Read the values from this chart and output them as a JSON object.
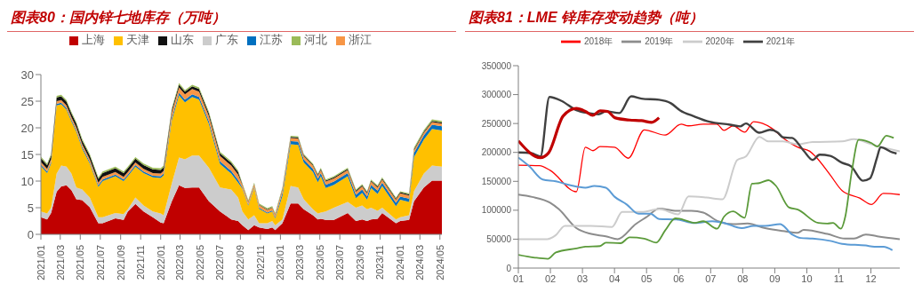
{
  "chart_data": [
    {
      "type": "area",
      "title": "图表80：国内锌七地库存（万吨）",
      "stacked": true,
      "legend": "top",
      "marker": "none",
      "x": [
        "2021-01-01",
        "2021-01-20",
        "2021-02-01",
        "2021-02-18",
        "2021-03-04",
        "2021-03-20",
        "2021-04-04",
        "2021-04-19",
        "2021-05-07",
        "2021-05-30",
        "2021-06-25",
        "2021-07-08",
        "2021-08-16",
        "2021-09-10",
        "2021-09-23",
        "2021-10-16",
        "2021-11-10",
        "2021-12-08",
        "2022-01-01",
        "2022-01-10",
        "2022-02-04",
        "2022-02-26",
        "2022-03-16",
        "2022-04-07",
        "2022-04-28",
        "2022-05-28",
        "2022-07-01",
        "2022-08-04",
        "2022-08-25",
        "2022-09-07",
        "2022-09-25",
        "2022-10-13",
        "2022-10-28",
        "2022-11-22",
        "2022-12-07",
        "2022-12-16",
        "2023-01-07",
        "2023-02-01",
        "2023-02-24",
        "2023-03-13",
        "2023-04-10",
        "2023-04-25",
        "2023-05-04",
        "2023-05-19",
        "2023-06-13",
        "2023-07-25",
        "2023-08-19",
        "2023-09-07",
        "2023-09-22",
        "2023-10-04",
        "2023-10-24",
        "2023-11-07",
        "2023-12-19",
        "2024-01-01",
        "2024-01-28",
        "2024-02-12",
        "2024-03-13",
        "2024-04-07",
        "2024-05-07"
      ],
      "xlim": [
        "2021-01-01",
        "2024-05-07"
      ],
      "xticks": [
        {
          "value": "2021-01",
          "label": "2021/01"
        },
        {
          "value": "2021-03",
          "label": "2021/03"
        },
        {
          "value": "2021-05",
          "label": "2021/05"
        },
        {
          "value": "2021-07",
          "label": "2021/07"
        },
        {
          "value": "2021-09",
          "label": "2021/09"
        },
        {
          "value": "2021-11",
          "label": "2021/11"
        },
        {
          "value": "2022-01",
          "label": "2022/01"
        },
        {
          "value": "2022-03",
          "label": "2022/03"
        },
        {
          "value": "2022-05",
          "label": "2022/05"
        },
        {
          "value": "2022-07",
          "label": "2022/07"
        },
        {
          "value": "2022-09",
          "label": "2022/09"
        },
        {
          "value": "2022-11",
          "label": "2022/11"
        },
        {
          "value": "2023-01",
          "label": "2023/01"
        },
        {
          "value": "2023-03",
          "label": "2023/03"
        },
        {
          "value": "2023-05",
          "label": "2023/05"
        },
        {
          "value": "2023-07",
          "label": "2023/07"
        },
        {
          "value": "2023-09",
          "label": "2023/09"
        },
        {
          "value": "2023-11",
          "label": "2023/11"
        },
        {
          "value": "2024-01",
          "label": "2024/01"
        },
        {
          "value": "2024-03",
          "label": "2024/03"
        },
        {
          "value": "2024-05",
          "label": "2024/05"
        }
      ],
      "ylim": [
        0,
        30
      ],
      "yticks": [
        0,
        5,
        10,
        15,
        20,
        25,
        30
      ],
      "series": [
        {
          "name": "上海",
          "color": "#c00000",
          "values": [
            3.2,
            2.8,
            4.0,
            8.0,
            9.0,
            9.2,
            8.3,
            6.6,
            6.4,
            5.1,
            2.1,
            2.1,
            3.0,
            2.7,
            4.3,
            5.7,
            4.3,
            3.2,
            2.2,
            2.1,
            6.2,
            9.2,
            8.7,
            8.8,
            8.8,
            6.2,
            4.3,
            2.8,
            2.5,
            1.7,
            0.8,
            1.7,
            1.3,
            1.0,
            1.3,
            0.8,
            2.1,
            5.8,
            5.8,
            4.7,
            3.6,
            2.8,
            2.9,
            2.7,
            2.7,
            4.0,
            2.5,
            2.8,
            2.5,
            2.8,
            2.9,
            4.0,
            2.1,
            2.5,
            2.7,
            6.2,
            8.8,
            10.1,
            10.1
          ]
        },
        {
          "name": "广东",
          "color": "#cccccc",
          "values": [
            1.1,
            1.1,
            1.0,
            3.4,
            3.9,
            3.5,
            3.1,
            2.2,
            2.0,
            1.8,
            1.1,
            1.1,
            1.0,
            1.1,
            0.4,
            1.2,
            1.1,
            1.1,
            1.7,
            1.5,
            3.4,
            5.2,
            5.4,
            6.0,
            6.0,
            6.3,
            4.5,
            5.6,
            4.4,
            2.6,
            2.0,
            1.9,
            0.8,
            1.1,
            1.2,
            0.9,
            0.7,
            3.3,
            3.0,
            1.9,
            1.1,
            1.1,
            1.2,
            1.6,
            2.3,
            2.1,
            2.5,
            2.6,
            2.2,
            2.2,
            1.5,
            1.0,
            0.7,
            0.7,
            0.9,
            1.9,
            2.6,
            2.8,
            2.6
          ]
        },
        {
          "name": "天津",
          "color": "#ffc000",
          "values": [
            8.5,
            7.6,
            8.3,
            12.8,
            11.5,
            10.7,
            9.8,
            10.5,
            7.7,
            6.4,
            5.7,
            6.8,
            6.9,
            6.2,
            6.2,
            5.8,
            6.1,
            6.4,
            6.7,
            7.5,
            11.8,
            11.7,
            10.7,
            11.0,
            10.5,
            8.2,
            4.4,
            3.0,
            2.8,
            4.3,
            2.6,
            5.1,
            2.7,
            1.8,
            1.8,
            1.3,
            4.4,
            7.8,
            8.0,
            6.9,
            7.0,
            5.9,
            6.8,
            4.4,
            4.3,
            4.8,
            1.8,
            2.4,
            1.8,
            3.7,
            3.2,
            4.1,
            2.5,
            3.3,
            2.5,
            6.4,
            6.4,
            6.9,
            6.8
          ]
        },
        {
          "name": "江苏",
          "color": "#0070c0",
          "values": [
            0.3,
            0.3,
            0.3,
            0.3,
            0.3,
            0.3,
            0.3,
            0.3,
            0.3,
            0.3,
            0.3,
            0.3,
            0.3,
            0.3,
            0.3,
            0.3,
            0.3,
            0.3,
            0.3,
            0.3,
            0.5,
            0.5,
            0.5,
            0.5,
            0.5,
            0.5,
            0.5,
            0.5,
            0.5,
            0.2,
            0.2,
            0.2,
            0.2,
            0.2,
            0.2,
            0.2,
            0.6,
            0.6,
            0.6,
            0.6,
            0.6,
            0.6,
            0.6,
            0.6,
            0.6,
            0.6,
            0.6,
            0.6,
            0.6,
            0.6,
            0.6,
            0.6,
            0.6,
            0.6,
            0.6,
            0.8,
            0.8,
            0.8,
            0.8
          ]
        },
        {
          "name": "浙江",
          "color": "#f79646",
          "values": [
            0.5,
            0.5,
            0.5,
            0.5,
            0.5,
            0.5,
            0.5,
            0.5,
            0.5,
            0.5,
            0.5,
            0.5,
            0.5,
            0.5,
            0.5,
            0.5,
            0.5,
            0.5,
            0.5,
            0.5,
            1.0,
            1.0,
            1.0,
            1.0,
            1.0,
            1.0,
            1.0,
            1.0,
            1.0,
            0.5,
            0.5,
            0.5,
            0.5,
            0.5,
            0.5,
            0.5,
            0.6,
            0.6,
            0.6,
            0.6,
            0.6,
            0.6,
            0.6,
            0.6,
            0.6,
            0.6,
            0.6,
            0.6,
            0.6,
            0.6,
            0.6,
            0.6,
            0.6,
            0.6,
            0.6,
            0.5,
            0.5,
            0.5,
            0.5
          ]
        },
        {
          "name": "山东",
          "color": "#111111",
          "values": [
            0.7,
            0.7,
            0.7,
            0.7,
            0.7,
            0.7,
            0.7,
            0.7,
            0.7,
            0.7,
            0.7,
            0.7,
            0.7,
            0.7,
            0.7,
            0.7,
            0.7,
            0.7,
            0.7,
            0.7,
            0.5,
            0.5,
            0.5,
            0.5,
            0.5,
            0.5,
            0.5,
            0.5,
            0.5,
            0.1,
            0.1,
            0.1,
            0.1,
            0.1,
            0.1,
            0.1,
            0.2,
            0.2,
            0.2,
            0.2,
            0.2,
            0.2,
            0.2,
            0.2,
            0.2,
            0.2,
            0.2,
            0.2,
            0.2,
            0.2,
            0.2,
            0.2,
            0.2,
            0.2,
            0.2,
            0.2,
            0.2,
            0.2,
            0.2
          ]
        },
        {
          "name": "河北",
          "color": "#9bbb59",
          "values": [
            0.3,
            0.3,
            0.3,
            0.3,
            0.3,
            0.3,
            0.3,
            0.3,
            0.3,
            0.3,
            0.3,
            0.3,
            0.3,
            0.3,
            0.3,
            0.3,
            0.3,
            0.3,
            0.3,
            0.3,
            0.3,
            0.3,
            0.3,
            0.3,
            0.3,
            0.3,
            0.3,
            0.3,
            0.3,
            0.2,
            0.2,
            0.2,
            0.2,
            0.2,
            0.2,
            0.2,
            0.2,
            0.2,
            0.2,
            0.2,
            0.2,
            0.2,
            0.2,
            0.2,
            0.2,
            0.2,
            0.2,
            0.2,
            0.2,
            0.2,
            0.2,
            0.2,
            0.2,
            0.2,
            0.2,
            0.3,
            0.3,
            0.3,
            0.3
          ]
        }
      ]
    },
    {
      "type": "line",
      "title": "图表81：LME 锌库存变动趋势（吨）",
      "legend": "top",
      "marker": "none",
      "line_style": "solid",
      "xlim": [
        1,
        12.9
      ],
      "xticks": [
        {
          "value": 1,
          "label": "01"
        },
        {
          "value": 2,
          "label": "02"
        },
        {
          "value": 3,
          "label": "03"
        },
        {
          "value": 4,
          "label": "04"
        },
        {
          "value": 5,
          "label": "05"
        },
        {
          "value": 6,
          "label": "06"
        },
        {
          "value": 7,
          "label": "07"
        },
        {
          "value": 8,
          "label": "08"
        },
        {
          "value": 9,
          "label": "09"
        },
        {
          "value": 10,
          "label": "10"
        },
        {
          "value": 11,
          "label": "11"
        },
        {
          "value": 12,
          "label": "12"
        }
      ],
      "ylim": [
        0,
        350000
      ],
      "yticks": [
        0,
        50000,
        100000,
        150000,
        200000,
        250000,
        300000,
        350000
      ],
      "series": [
        {
          "name": "2018年",
          "color": "#ff0000",
          "x": [
            1.0,
            1.66,
            1.99,
            2.81,
            3.09,
            3.33,
            3.55,
            4.0,
            4.43,
            4.93,
            5.58,
            6.08,
            6.3,
            6.77,
            7.19,
            7.42,
            7.7,
            8.06,
            8.34,
            8.9,
            9.26,
            9.72,
            10.09,
            10.27,
            10.73,
            11.1,
            11.65,
            12.02,
            12.39,
            12.9
          ],
          "values": [
            178000,
            177000,
            169000,
            132000,
            209000,
            203000,
            210000,
            209000,
            190000,
            239000,
            230000,
            249000,
            246000,
            249000,
            249000,
            238000,
            246000,
            235000,
            253000,
            242000,
            225000,
            209000,
            202000,
            193000,
            161000,
            134000,
            121000,
            110000,
            129000,
            127000
          ]
        },
        {
          "name": "2019年",
          "color": "#8c8c8c",
          "x": [
            1.0,
            1.43,
            1.99,
            2.26,
            2.81,
            3.27,
            3.73,
            4.1,
            4.66,
            5.02,
            5.39,
            5.94,
            6.4,
            6.77,
            7.23,
            7.7,
            8.15,
            8.7,
            9.26,
            9.72,
            9.9,
            10.64,
            11.19,
            11.47,
            11.84,
            12.2,
            12.9
          ],
          "values": [
            127000,
            123000,
            113000,
            102000,
            69000,
            59000,
            55000,
            50000,
            76000,
            89000,
            103000,
            99000,
            99000,
            96000,
            81000,
            76000,
            77000,
            69000,
            64000,
            61000,
            66000,
            59000,
            51000,
            51000,
            58000,
            55000,
            50000
          ]
        },
        {
          "name": "2020年",
          "color": "#cccccc",
          "x": [
            1.0,
            1.9,
            2.17,
            2.45,
            3.27,
            3.92,
            4.24,
            4.84,
            5.39,
            5.99,
            6.31,
            6.87,
            7.37,
            7.83,
            8.1,
            8.52,
            8.8,
            9.26,
            9.72,
            10.18,
            11.1,
            11.47,
            12.02,
            12.9
          ],
          "values": [
            50000,
            50000,
            57000,
            73000,
            73000,
            71000,
            97000,
            97000,
            102000,
            93000,
            124000,
            122000,
            119000,
            187000,
            193000,
            227000,
            219000,
            219000,
            214000,
            218000,
            219000,
            223000,
            214000,
            202000
          ]
        },
        {
          "name": "2021年",
          "color": "#404040",
          "x": [
            1.0,
            1.39,
            1.69,
            1.97,
            2.35,
            2.81,
            3.18,
            3.5,
            3.73,
            4.15,
            4.52,
            4.84,
            5.39,
            5.76,
            6.04,
            6.5,
            6.96,
            7.6,
            7.92,
            8.1,
            8.52,
            8.85,
            9.08,
            9.26,
            9.54,
            9.9,
            10.18,
            10.4,
            10.73,
            11.1,
            11.38,
            11.75,
            11.97,
            12.2,
            12.3,
            12.67,
            12.8
          ],
          "values": [
            200000,
            199000,
            193000,
            296000,
            289000,
            273000,
            268000,
            266000,
            271000,
            268000,
            297000,
            293000,
            291000,
            285000,
            273000,
            262000,
            253000,
            248000,
            245000,
            250000,
            234000,
            239000,
            235000,
            226000,
            225000,
            203000,
            187000,
            196000,
            194000,
            182000,
            176000,
            151000,
            155000,
            193000,
            209000,
            200000,
            198000
          ]
        },
        {
          "color": "#5b9bd5",
          "x": [
            1.0,
            1.34,
            1.76,
            2.17,
            2.63,
            3.09,
            3.37,
            3.73,
            4.01,
            4.38,
            4.75,
            5.12,
            5.39,
            5.94,
            6.5,
            7.05,
            7.42,
            7.97,
            8.34,
            8.7,
            9.17,
            9.54,
            9.81,
            10.18,
            10.73,
            11.1,
            11.84,
            12.11,
            12.39,
            12.67
          ],
          "values": [
            191000,
            176000,
            153000,
            150000,
            143000,
            139000,
            142000,
            139000,
            123000,
            110000,
            94000,
            94000,
            85000,
            84000,
            78000,
            81000,
            78000,
            69000,
            73000,
            73000,
            76000,
            58000,
            52000,
            51000,
            47000,
            42000,
            39000,
            37000,
            37000,
            31000
          ]
        },
        {
          "color": "#5b9a3a",
          "x": [
            1.0,
            1.52,
            1.92,
            2.17,
            2.81,
            3.09,
            3.55,
            3.73,
            4.19,
            4.47,
            4.93,
            5.3,
            5.58,
            5.9,
            6.13,
            6.5,
            6.77,
            7.2,
            7.42,
            7.7,
            8.06,
            8.29,
            8.52,
            8.8,
            9.04,
            9.44,
            9.72,
            10.36,
            10.64,
            10.82,
            11.06,
            11.2,
            11.4,
            11.62,
            12.02,
            12.2,
            12.48,
            12.71
          ],
          "values": [
            23000,
            18000,
            16000,
            27000,
            34000,
            37000,
            38000,
            44000,
            43000,
            53000,
            51000,
            44000,
            65000,
            86000,
            84000,
            78000,
            81000,
            68000,
            89000,
            98000,
            87000,
            146000,
            147000,
            152000,
            142000,
            105000,
            101000,
            78000,
            77000,
            78000,
            68000,
            89000,
            166000,
            222000,
            216000,
            210000,
            229000,
            225000
          ]
        },
        {
          "color": "#c00000",
          "x": [
            1.0,
            1.69,
            1.94,
            2.4,
            2.81,
            3.09,
            3.32,
            3.55,
            3.78,
            4.01,
            4.47,
            4.84,
            5.16,
            5.39
          ],
          "values": [
            220000,
            191000,
            199000,
            263000,
            276000,
            271000,
            264000,
            272000,
            271000,
            260000,
            256000,
            255000,
            252000,
            260000
          ]
        }
      ]
    }
  ]
}
